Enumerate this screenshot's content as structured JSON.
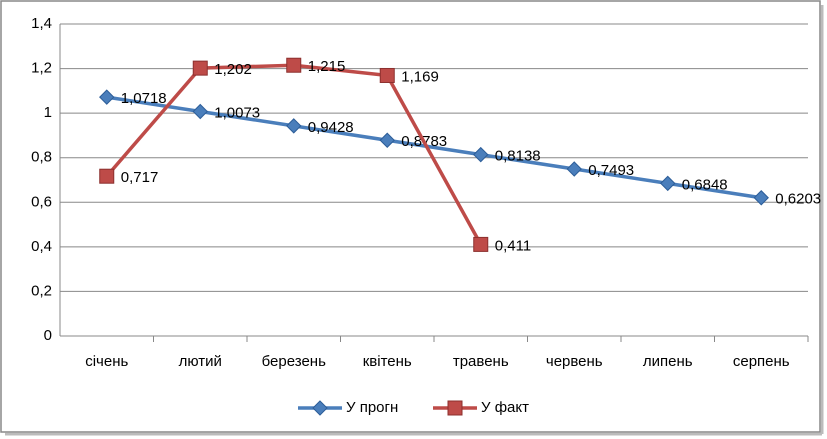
{
  "chart_data": {
    "type": "line",
    "categories": [
      "січень",
      "лютий",
      "березень",
      "квітень",
      "травень",
      "червень",
      "липень",
      "серпень"
    ],
    "series": [
      {
        "name": "У прогн",
        "color": "#4a7ebb",
        "marker": "diamond",
        "values": [
          1.0718,
          1.0073,
          0.9428,
          0.8783,
          0.8138,
          0.7493,
          0.6848,
          0.6203
        ],
        "value_labels": [
          "1,0718",
          "1,0073",
          "0,9428",
          "0,8783",
          "0,8138",
          "0,7493",
          "0,6848",
          "0,6203"
        ]
      },
      {
        "name": "У факт",
        "color": "#be4b48",
        "marker": "square",
        "values": [
          0.717,
          1.202,
          1.215,
          1.169,
          0.411,
          null,
          null,
          null
        ],
        "value_labels": [
          "0,717",
          "1,202",
          "1,215",
          "1,169",
          "0,411",
          null,
          null,
          null
        ]
      }
    ],
    "ylim": [
      0,
      1.4
    ],
    "yticks": [
      0,
      {
        "value": 0.2,
        "label": "0,2"
      },
      {
        "value": 0.4,
        "label": "0,4"
      },
      {
        "value": 0.6,
        "label": "0,6"
      },
      {
        "value": 0.8,
        "label": "0,8"
      },
      1,
      {
        "value": 1.2,
        "label": "1,2"
      },
      {
        "value": 1.4,
        "label": "1,4"
      }
    ],
    "grid": true,
    "legend": "bottom"
  }
}
